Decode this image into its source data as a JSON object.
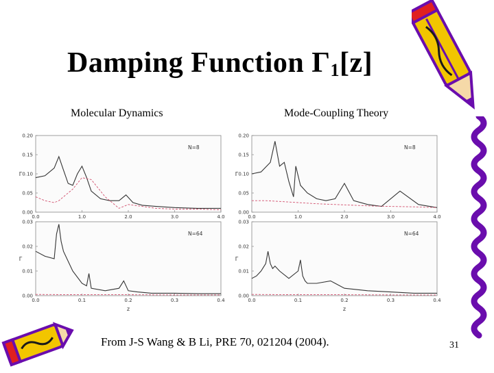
{
  "title": {
    "main": "Damping Function Γ",
    "sub": "1",
    "tail": "[z]"
  },
  "headers": {
    "left": "Molecular Dynamics",
    "right": "Mode-Coupling Theory"
  },
  "citation": "From J-S Wang & B Li, PRE 70, 021204 (2004).",
  "page_number": "31",
  "chart_data": [
    {
      "type": "line",
      "method": "Molecular Dynamics",
      "label": "N=8",
      "ylabel": "Γ",
      "xlabel": "",
      "xlim": [
        0.0,
        4.0
      ],
      "ylim": [
        0.0,
        0.2
      ],
      "xticks": [
        "0.0",
        "1.0",
        "2.0",
        "3.0",
        "4.0"
      ],
      "yticks": [
        "0.00",
        "0.05",
        "0.10",
        "0.15",
        "0.20"
      ],
      "series": [
        {
          "style": "solid",
          "x": [
            0,
            0.2,
            0.4,
            0.5,
            0.6,
            0.7,
            0.8,
            0.9,
            1.0,
            1.1,
            1.2,
            1.4,
            1.6,
            1.8,
            1.95,
            2.1,
            2.3,
            2.6,
            3.0,
            3.5,
            4.0
          ],
          "y": [
            0.09,
            0.095,
            0.115,
            0.145,
            0.11,
            0.075,
            0.07,
            0.1,
            0.12,
            0.09,
            0.055,
            0.035,
            0.03,
            0.03,
            0.045,
            0.025,
            0.018,
            0.015,
            0.012,
            0.01,
            0.01
          ]
        },
        {
          "style": "dashed",
          "x": [
            0,
            0.2,
            0.4,
            0.5,
            0.6,
            0.8,
            1.0,
            1.2,
            1.5,
            1.8,
            2.0,
            2.3,
            2.6,
            3.0,
            3.5,
            4.0
          ],
          "y": [
            0.04,
            0.03,
            0.025,
            0.03,
            0.04,
            0.06,
            0.09,
            0.085,
            0.04,
            0.01,
            0.02,
            0.015,
            0.01,
            0.008,
            0.008,
            0.006
          ]
        }
      ]
    },
    {
      "type": "line",
      "method": "Mode-Coupling Theory",
      "label": "N=8",
      "ylabel": "Γ",
      "xlabel": "",
      "xlim": [
        0.0,
        4.0
      ],
      "ylim": [
        0.0,
        0.2
      ],
      "xticks": [
        "0.0",
        "1.0",
        "2.0",
        "3.0",
        "4.0"
      ],
      "yticks": [
        "0.00",
        "0.05",
        "0.10",
        "0.15",
        "0.20"
      ],
      "series": [
        {
          "style": "solid",
          "x": [
            0,
            0.2,
            0.4,
            0.5,
            0.6,
            0.7,
            0.8,
            0.9,
            0.95,
            1.05,
            1.2,
            1.4,
            1.6,
            1.8,
            2.0,
            2.2,
            2.5,
            2.8,
            3.2,
            3.6,
            4.0
          ],
          "y": [
            0.1,
            0.105,
            0.13,
            0.185,
            0.12,
            0.13,
            0.08,
            0.04,
            0.12,
            0.07,
            0.05,
            0.035,
            0.03,
            0.035,
            0.075,
            0.03,
            0.02,
            0.015,
            0.055,
            0.02,
            0.012
          ]
        },
        {
          "style": "dashed",
          "x": [
            0,
            0.3,
            0.6,
            1.0,
            1.4,
            1.8,
            2.2,
            2.6,
            3.0,
            3.5,
            4.0
          ],
          "y": [
            0.03,
            0.03,
            0.028,
            0.025,
            0.022,
            0.02,
            0.018,
            0.016,
            0.015,
            0.014,
            0.012
          ]
        }
      ]
    },
    {
      "type": "line",
      "method": "Molecular Dynamics",
      "label": "N=64",
      "ylabel": "Γ",
      "xlabel": "z",
      "xlim": [
        0.0,
        0.4
      ],
      "ylim": [
        0.0,
        0.03
      ],
      "xticks": [
        "0.0",
        "0.1",
        "0.2",
        "0.3",
        "0.4"
      ],
      "yticks": [
        "0.00",
        "0.01",
        "0.02",
        "0.03"
      ],
      "series": [
        {
          "style": "solid",
          "x": [
            0,
            0.02,
            0.04,
            0.045,
            0.05,
            0.055,
            0.06,
            0.08,
            0.1,
            0.11,
            0.115,
            0.12,
            0.15,
            0.18,
            0.19,
            0.2,
            0.22,
            0.25,
            0.3,
            0.35,
            0.4
          ],
          "y": [
            0.018,
            0.016,
            0.015,
            0.025,
            0.029,
            0.022,
            0.018,
            0.01,
            0.005,
            0.004,
            0.009,
            0.003,
            0.002,
            0.003,
            0.006,
            0.002,
            0.0015,
            0.001,
            0.001,
            0.0008,
            0.0008
          ]
        },
        {
          "style": "dashed",
          "x": [
            0,
            0.1,
            0.2,
            0.3,
            0.4
          ],
          "y": [
            0.0005,
            0.0004,
            0.0004,
            0.0003,
            0.0003
          ]
        }
      ]
    },
    {
      "type": "line",
      "method": "Mode-Coupling Theory",
      "label": "N=64",
      "ylabel": "Γ",
      "xlabel": "z",
      "xlim": [
        0.0,
        0.4
      ],
      "ylim": [
        0.0,
        0.03
      ],
      "xticks": [
        "0.0",
        "0.1",
        "0.2",
        "0.3",
        "0.4"
      ],
      "yticks": [
        "0.00",
        "0.01",
        "0.02",
        "0.03"
      ],
      "series": [
        {
          "style": "solid",
          "x": [
            0,
            0.01,
            0.02,
            0.03,
            0.035,
            0.04,
            0.045,
            0.05,
            0.06,
            0.08,
            0.1,
            0.105,
            0.11,
            0.115,
            0.12,
            0.14,
            0.17,
            0.18,
            0.2,
            0.25,
            0.3,
            0.35,
            0.4
          ],
          "y": [
            0.007,
            0.008,
            0.01,
            0.013,
            0.018,
            0.013,
            0.011,
            0.012,
            0.01,
            0.007,
            0.01,
            0.0145,
            0.008,
            0.006,
            0.005,
            0.005,
            0.006,
            0.005,
            0.003,
            0.002,
            0.0015,
            0.001,
            0.001
          ]
        },
        {
          "style": "dashed",
          "x": [
            0,
            0.1,
            0.2,
            0.3,
            0.4
          ],
          "y": [
            0.0005,
            0.0004,
            0.0004,
            0.0003,
            0.0003
          ]
        }
      ]
    }
  ],
  "colors": {
    "solid_series": "#333333",
    "dashed_series": "#d2506e",
    "pencil_body": "#f2c500",
    "pencil_outline": "#6a0dad"
  },
  "decorations": {
    "top_right": "pencil-icon",
    "bottom_left": "pencil-icon"
  }
}
